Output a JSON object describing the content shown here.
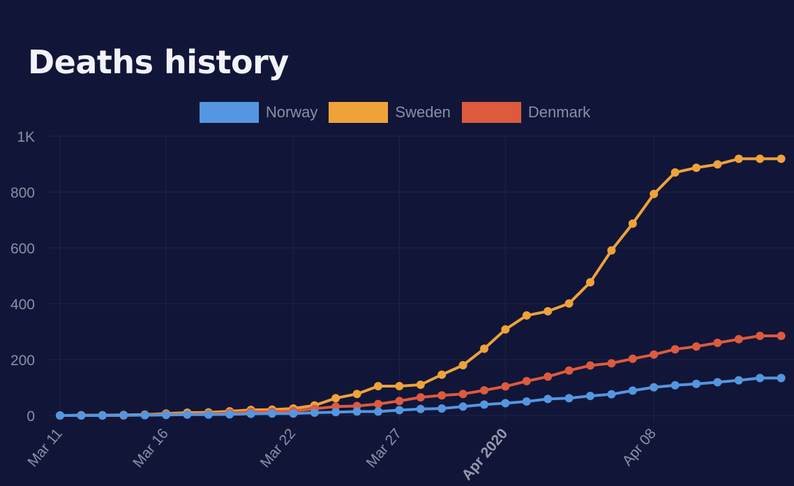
{
  "page": {
    "title": "Deaths history"
  },
  "chart_data": {
    "type": "line",
    "title": "Deaths history",
    "xlabel": "",
    "ylabel": "",
    "ylim": [
      0,
      1000
    ],
    "y_ticks": [
      "0",
      "200",
      "400",
      "600",
      "800",
      "1K"
    ],
    "x_ticks": [
      {
        "label": "Mar 11",
        "index": 0,
        "bold": false
      },
      {
        "label": "Mar 16",
        "index": 5,
        "bold": false
      },
      {
        "label": "Mar 22",
        "index": 11,
        "bold": false
      },
      {
        "label": "Mar 27",
        "index": 16,
        "bold": false
      },
      {
        "label": "Apr 2020",
        "index": 21,
        "bold": true
      },
      {
        "label": "Apr 08",
        "index": 28,
        "bold": false
      }
    ],
    "x": [
      "2020-03-11",
      "2020-03-12",
      "2020-03-13",
      "2020-03-14",
      "2020-03-15",
      "2020-03-16",
      "2020-03-17",
      "2020-03-18",
      "2020-03-19",
      "2020-03-20",
      "2020-03-21",
      "2020-03-22",
      "2020-03-23",
      "2020-03-24",
      "2020-03-25",
      "2020-03-26",
      "2020-03-27",
      "2020-03-28",
      "2020-03-29",
      "2020-03-30",
      "2020-03-31",
      "2020-04-01",
      "2020-04-02",
      "2020-04-03",
      "2020-04-04",
      "2020-04-05",
      "2020-04-06",
      "2020-04-07",
      "2020-04-08",
      "2020-04-09",
      "2020-04-10",
      "2020-04-11",
      "2020-04-12",
      "2020-04-13",
      "2020-04-14"
    ],
    "legend_position": "top",
    "grid": true,
    "series": [
      {
        "name": "Norway",
        "color": "#5596e0",
        "values": [
          0,
          0,
          0,
          1,
          1,
          2,
          3,
          3,
          4,
          6,
          7,
          7,
          10,
          12,
          14,
          14,
          19,
          23,
          25,
          32,
          39,
          44,
          50,
          59,
          62,
          70,
          76,
          89,
          101,
          108,
          113,
          119,
          126,
          134,
          134
        ]
      },
      {
        "name": "Sweden",
        "color": "#eea23a",
        "values": [
          0,
          1,
          1,
          2,
          3,
          7,
          10,
          11,
          15,
          20,
          21,
          25,
          36,
          62,
          77,
          105,
          105,
          110,
          146,
          180,
          239,
          308,
          358,
          373,
          401,
          477,
          591,
          687,
          793,
          870,
          887,
          899,
          919,
          919,
          919
        ]
      },
      {
        "name": "Denmark",
        "color": "#dd5a3e",
        "values": [
          0,
          0,
          0,
          0,
          2,
          4,
          4,
          6,
          9,
          13,
          13,
          16,
          24,
          32,
          34,
          41,
          52,
          65,
          72,
          77,
          90,
          104,
          123,
          139,
          161,
          179,
          187,
          203,
          218,
          237,
          247,
          260,
          273,
          285,
          285
        ]
      }
    ]
  }
}
